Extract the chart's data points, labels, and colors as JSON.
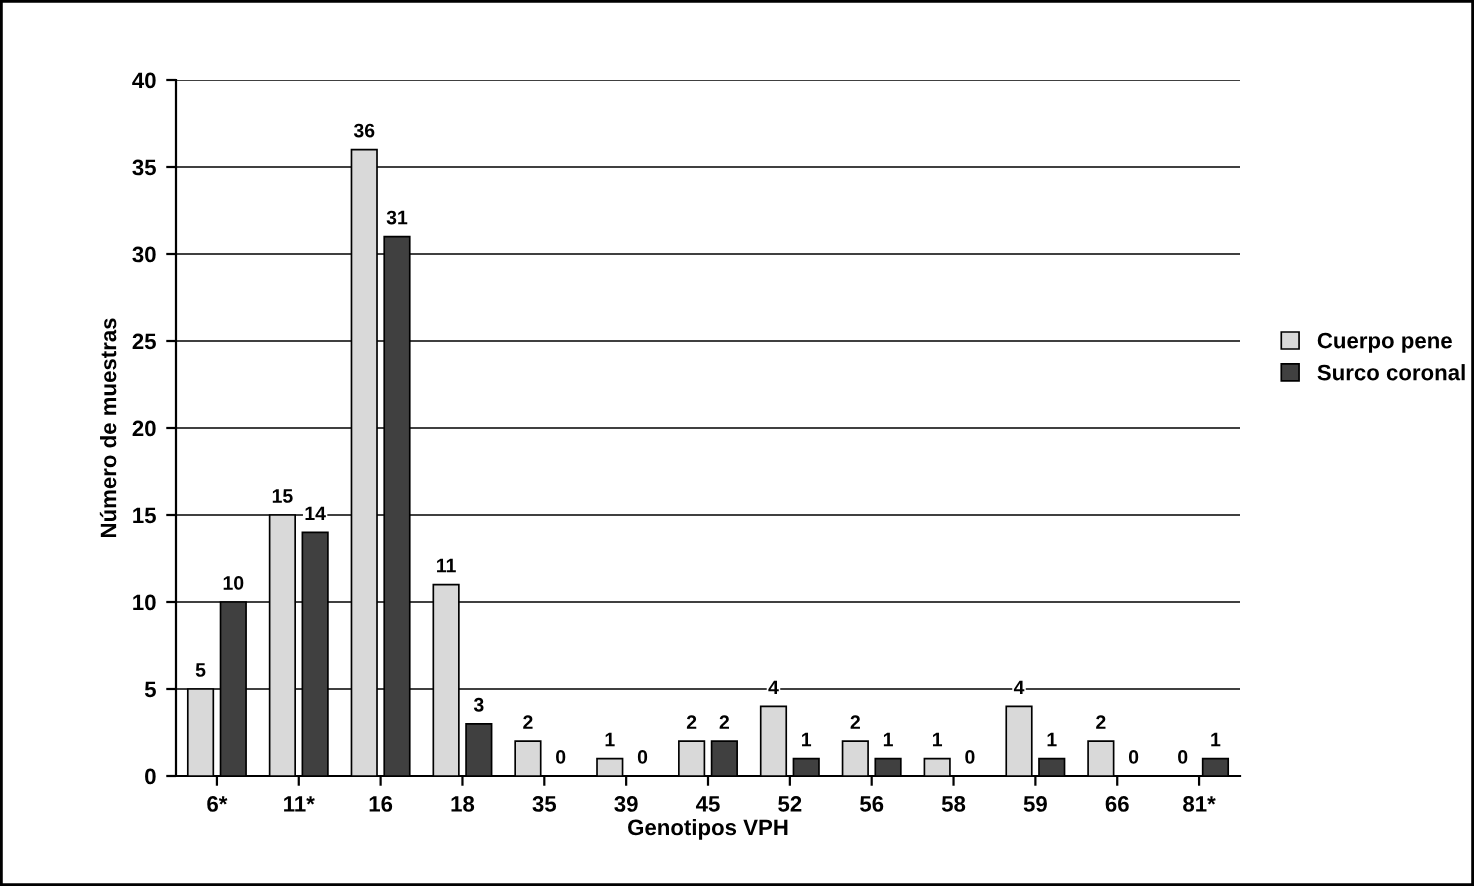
{
  "chart_data": {
    "type": "bar",
    "xlabel": "Genotipos VPH",
    "ylabel": "Número de muestras",
    "categories": [
      "6*",
      "11*",
      "16",
      "18",
      "35",
      "39",
      "45",
      "52",
      "56",
      "58",
      "59",
      "66",
      "81*"
    ],
    "series": [
      {
        "name": "Cuerpo pene",
        "color": "#d9d9d9",
        "values": [
          5,
          15,
          36,
          11,
          2,
          1,
          2,
          4,
          2,
          1,
          4,
          2,
          0
        ]
      },
      {
        "name": "Surco coronal",
        "color": "#404040",
        "values": [
          10,
          14,
          31,
          3,
          0,
          0,
          2,
          1,
          1,
          0,
          1,
          0,
          1
        ]
      }
    ],
    "ylim": [
      0,
      40
    ],
    "yticks": [
      0,
      5,
      10,
      15,
      20,
      25,
      30,
      35,
      40
    ],
    "grid": "y",
    "legend": "right",
    "data_labels": true
  }
}
